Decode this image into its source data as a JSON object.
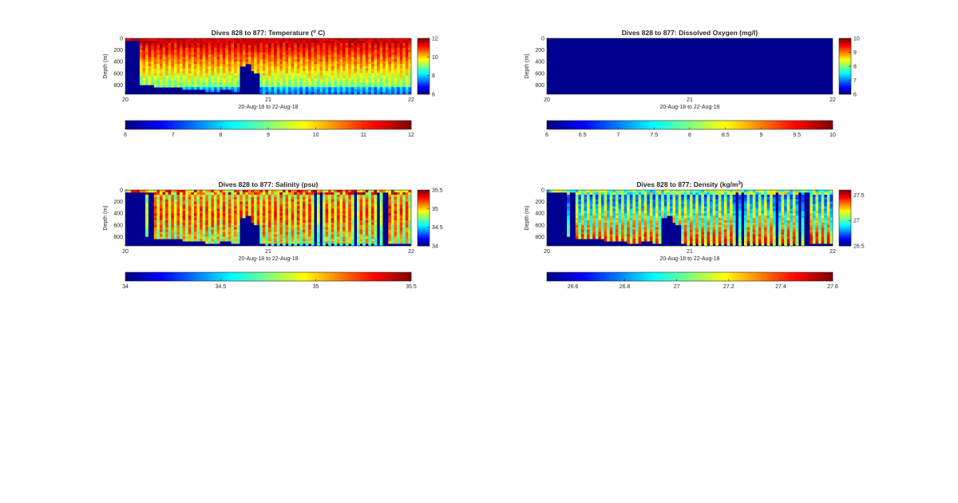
{
  "chart_data": [
    {
      "type": "heatmap",
      "title": "Dives 828 to 877: Temperature (",
      "title_sup": "o",
      "title_after": " C)",
      "variable": "temperature",
      "xlabel": "20-Aug-18 to 22-Aug-18",
      "ylabel": "Depth (m)",
      "x_ticks": [
        "20",
        "21",
        "22"
      ],
      "y_ticks": [
        "0",
        "200",
        "400",
        "600",
        "800"
      ],
      "ylim": [
        0,
        960
      ],
      "clim": [
        6,
        12
      ],
      "colorbar_ticks": [
        "12",
        "10",
        "8",
        "6"
      ],
      "h_colorbar_ticks": [
        "6",
        "7",
        "8",
        "9",
        "10",
        "11",
        "12"
      ],
      "colormap": "jet",
      "no_data_color": "#00008f"
    },
    {
      "type": "heatmap",
      "title": "Dives 828 to 877: Dissolved Oxygen (mg/l)",
      "variable": "dissolved_oxygen",
      "xlabel": "20-Aug-18 to 22-Aug-18",
      "ylabel": "Depth (m)",
      "x_ticks": [
        "20",
        "21",
        "22"
      ],
      "y_ticks": [
        "0",
        "200",
        "400",
        "600",
        "800"
      ],
      "ylim": [
        0,
        960
      ],
      "clim": [
        6,
        10
      ],
      "colorbar_ticks": [
        "10",
        "9",
        "8",
        "7",
        "6"
      ],
      "h_colorbar_ticks": [
        "6",
        "6.5",
        "7",
        "7.5",
        "8",
        "8.5",
        "9",
        "9.5",
        "10"
      ],
      "colormap": "jet",
      "no_data_color": "#00008f"
    },
    {
      "type": "heatmap",
      "title": "Dives 828 to 877: Salinity (psu)",
      "variable": "salinity",
      "xlabel": "20-Aug-18 to 22-Aug-18",
      "ylabel": "Depth (m)",
      "x_ticks": [
        "20",
        "21",
        "22"
      ],
      "y_ticks": [
        "0",
        "200",
        "400",
        "600",
        "800"
      ],
      "ylim": [
        0,
        960
      ],
      "clim": [
        34,
        35.5
      ],
      "colorbar_ticks": [
        "35.5",
        "35",
        "34.5",
        "34"
      ],
      "h_colorbar_ticks": [
        "34",
        "34.5",
        "35",
        "35.5"
      ],
      "colormap": "jet",
      "no_data_color": "#00008f"
    },
    {
      "type": "heatmap",
      "title": "Dives 828 to 877: Density (kg/m",
      "title_sup": "3",
      "title_after": ")",
      "variable": "density",
      "xlabel": "20-Aug-18 to 22-Aug-18",
      "ylabel": "Depth (m)",
      "x_ticks": [
        "20",
        "21",
        "22"
      ],
      "y_ticks": [
        "0",
        "200",
        "400",
        "600",
        "800"
      ],
      "ylim": [
        0,
        960
      ],
      "clim": [
        26.5,
        27.6
      ],
      "colorbar_ticks": [
        "27.5",
        "27",
        "26.5"
      ],
      "h_colorbar_ticks": [
        "26.6",
        "26.8",
        "27",
        "27.2",
        "27.4",
        "27.6"
      ],
      "colormap": "jet",
      "no_data_color": "#00008f"
    }
  ]
}
